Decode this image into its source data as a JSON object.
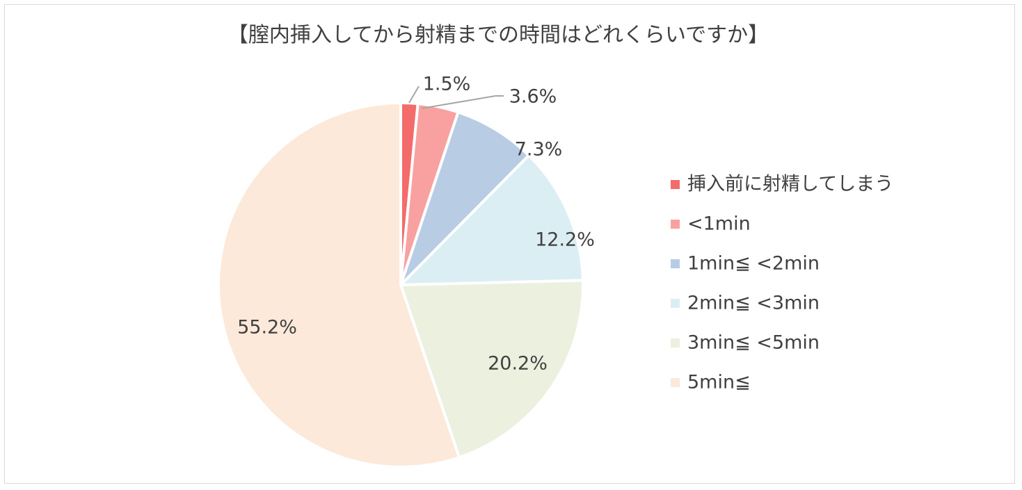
{
  "chart_data": {
    "type": "pie",
    "title": "【膣内挿入してから射精までの時間はどれくらいですか】",
    "categories": [
      "挿入前に射精してしまう",
      "<1min",
      "1min≦ <2min",
      "2min≦ <3min",
      "3min≦ <5min",
      "5min≦"
    ],
    "values": [
      1.5,
      3.6,
      7.3,
      12.2,
      20.2,
      55.2
    ],
    "data_labels": [
      "1.5%",
      "3.6%",
      "7.3%",
      "12.2%",
      "20.2%",
      "55.2%"
    ],
    "colors": [
      "#F36B6B",
      "#F9A0A0",
      "#B8CCE4",
      "#DAEEF3",
      "#EBF1DE",
      "#FDE9D9"
    ],
    "legend_position": "right"
  }
}
